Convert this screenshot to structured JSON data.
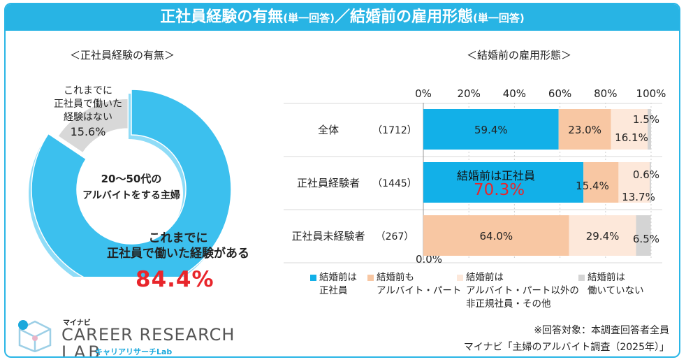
{
  "header": {
    "title_main_1": "正社員経験の有無",
    "title_tag_1": "(単一回答)",
    "title_sep": "／",
    "title_main_2": "結婚前の雇用形態",
    "title_tag_2": "(単一回答)"
  },
  "donut": {
    "section_title": "＜正社員経験の有無＞",
    "center_line1": "20～50代の",
    "center_line2": "アルバイトをする主婦",
    "yes_label_line1": "これまでに",
    "yes_label_line2": "正社員で働いた経験がある",
    "yes_value": "84.4%",
    "no_label_line1": "これまでに",
    "no_label_line2": "正社員で働いた",
    "no_label_line3": "経験はない",
    "no_value": "15.6%"
  },
  "bars": {
    "section_title": "＜結婚前の雇用形態＞",
    "highlight_line1": "結婚前は正社員",
    "highlight_value": "70.3%"
  },
  "chart_data": [
    {
      "type": "pie",
      "title": "正社員経験の有無",
      "center_text": "20～50代のアルバイトをする主婦",
      "categories": [
        "これまでに正社員で働いた経験がある",
        "これまでに正社員で働いた経験はない"
      ],
      "values": [
        84.4,
        15.6
      ],
      "colors": [
        "#3cc0ee",
        "#d8d8d8"
      ]
    },
    {
      "type": "bar",
      "orientation": "horizontal",
      "stacked": true,
      "title": "結婚前の雇用形態",
      "xlim": [
        0,
        100
      ],
      "xticks": [
        "0%",
        "20%",
        "40%",
        "60%",
        "80%",
        "100%"
      ],
      "categories": [
        "全体",
        "正社員経験者",
        "正社員未経験者"
      ],
      "n": [
        "（1712）",
        "（1445）",
        "（267）"
      ],
      "series": [
        {
          "name": "結婚前は正社員",
          "color": "#12b0e8",
          "values": [
            59.4,
            70.3,
            0.0
          ],
          "labels": [
            "59.4%",
            "70.3%",
            "0.0%"
          ]
        },
        {
          "name": "結婚前もアルバイト・パート",
          "color": "#f8c7a3",
          "values": [
            23.0,
            15.4,
            64.0
          ],
          "labels": [
            "23.0%",
            "15.4%",
            "64.0%"
          ]
        },
        {
          "name": "結婚前はアルバイト・パート以外の非正規社員・その他",
          "color": "#fde8da",
          "values": [
            16.1,
            13.7,
            29.4
          ],
          "labels": [
            "16.1%",
            "13.7%",
            "29.4%"
          ]
        },
        {
          "name": "結婚前は働いていない",
          "color": "#d4d4d4",
          "values": [
            1.5,
            0.6,
            6.5
          ],
          "labels": [
            "1.5%",
            "0.6%",
            "6.5%"
          ]
        }
      ],
      "legend": [
        {
          "line1": "結婚前は",
          "line2": "正社員",
          "line3": ""
        },
        {
          "line1": "結婚前も",
          "line2": "アルバイト・パート",
          "line3": ""
        },
        {
          "line1": "結婚前は",
          "line2": "アルバイト・パート以外の",
          "line3": "非正規社員・その他"
        },
        {
          "line1": "結婚前は",
          "line2": "働いていない",
          "line3": ""
        }
      ]
    }
  ],
  "footer": {
    "note_line1": "※回答対象：本調査回答者全員",
    "note_line2": "マイナビ「主婦のアルバイト調査（2025年）」",
    "logo_kana": "マイナビ",
    "logo_main": "CAREER RESEARCH",
    "logo_lab": "LAB",
    "logo_sub": "キャリアリサーチLab"
  }
}
